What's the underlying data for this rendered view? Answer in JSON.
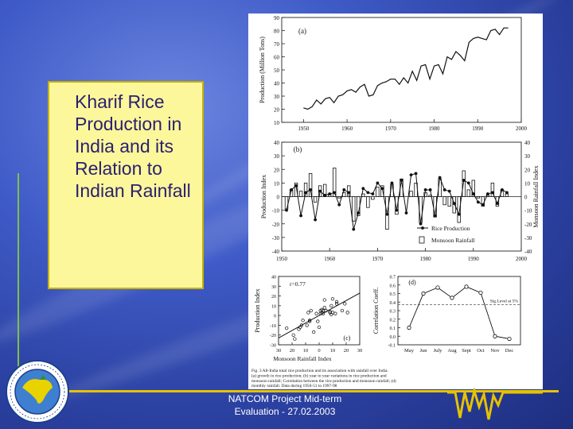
{
  "slide": {
    "title": "Kharif Rice Production in India and its Relation to Indian Rainfall",
    "footer_line1": "NATCOM Project Mid-term",
    "footer_line2": "Evaluation - 27.02.2003",
    "colors": {
      "accent": "#e6c200",
      "box_fill": "#fcf79a",
      "title_text": "#2b2070"
    }
  },
  "figure": {
    "caption": "Fig. 3 All-India total rice production and its association with rainfall over India. (a) growth in rice production; (b) year to year variations in rice production and monsoon rainfall; Correlation between the rice production and monsoon rainfall; (d) monthly rainfall. Data during 1950-51 to 1997-98"
  },
  "chart_data": [
    {
      "panel": "(a)",
      "type": "line",
      "ylabel": "Production (Million Tons)",
      "xlim": [
        1945,
        2000
      ],
      "ylim": [
        10,
        90
      ],
      "xticks": [
        1950,
        1960,
        1970,
        1980,
        1990,
        2000
      ],
      "yticks": [
        10,
        20,
        30,
        40,
        50,
        60,
        70,
        80,
        90
      ],
      "x": [
        1950,
        1951,
        1952,
        1953,
        1954,
        1955,
        1956,
        1957,
        1958,
        1959,
        1960,
        1961,
        1962,
        1963,
        1964,
        1965,
        1966,
        1967,
        1968,
        1969,
        1970,
        1971,
        1972,
        1973,
        1974,
        1975,
        1976,
        1977,
        1978,
        1979,
        1980,
        1981,
        1982,
        1983,
        1984,
        1985,
        1986,
        1987,
        1988,
        1989,
        1990,
        1991,
        1992,
        1993,
        1994,
        1995,
        1996,
        1997
      ],
      "y": [
        21,
        20,
        22,
        27,
        24,
        28,
        29,
        25,
        30,
        31,
        34,
        35,
        33,
        37,
        39,
        30,
        31,
        38,
        40,
        41,
        43,
        43,
        39,
        44,
        40,
        49,
        42,
        53,
        54,
        43,
        53,
        54,
        47,
        60,
        58,
        64,
        61,
        57,
        71,
        74,
        75,
        74,
        73,
        80,
        81,
        77,
        82,
        82
      ]
    },
    {
      "panel": "(b)",
      "type": "bar",
      "ylabel": "Production Index",
      "y2label": "Monsoon Rainfall Index",
      "xlim": [
        1950,
        2000
      ],
      "ylim": [
        -40,
        40
      ],
      "xticks": [
        1950,
        1960,
        1970,
        1980,
        1990,
        2000
      ],
      "yticks": [
        40,
        30,
        20,
        10,
        0,
        -10,
        -20,
        -30,
        -40
      ],
      "legend": [
        "Rice Production",
        "Monsoon Rainfall"
      ],
      "legend_position": "bottom-right",
      "x": [
        1951,
        1952,
        1953,
        1954,
        1955,
        1956,
        1957,
        1958,
        1959,
        1960,
        1961,
        1962,
        1963,
        1964,
        1965,
        1966,
        1967,
        1968,
        1969,
        1970,
        1971,
        1972,
        1973,
        1974,
        1975,
        1976,
        1977,
        1978,
        1979,
        1980,
        1981,
        1982,
        1983,
        1984,
        1985,
        1986,
        1987,
        1988,
        1989,
        1990,
        1991,
        1992,
        1993,
        1994,
        1995,
        1996,
        1997
      ],
      "series": [
        {
          "name": "Rice Production",
          "kind": "line",
          "values": [
            -10,
            5,
            8,
            -14,
            3,
            5,
            -17,
            4,
            1,
            2,
            3,
            -6,
            5,
            3,
            -24,
            -12,
            6,
            3,
            2,
            10,
            6,
            -13,
            10,
            -10,
            12,
            -12,
            16,
            17,
            -20,
            5,
            5,
            -14,
            14,
            5,
            4,
            -5,
            -13,
            12,
            10,
            2,
            -4,
            -6,
            2,
            3,
            -5,
            5,
            3
          ]
        },
        {
          "name": "Monsoon Rainfall",
          "kind": "bar",
          "values": [
            -9,
            5,
            10,
            4,
            10,
            17,
            -4,
            8,
            9,
            2,
            21,
            -1,
            3,
            8,
            -18,
            -14,
            2,
            -8,
            -2,
            7,
            8,
            -24,
            9,
            -13,
            13,
            0,
            4,
            10,
            -19,
            3,
            1,
            -15,
            13,
            -6,
            -7,
            -12,
            -19,
            19,
            5,
            12,
            -1,
            -7,
            1,
            10,
            -7,
            5,
            2
          ]
        }
      ]
    },
    {
      "panel": "(c)",
      "type": "scatter",
      "xlabel": "Monsoon Rainfall Index",
      "ylabel": "Production Index",
      "xlim": [
        -30,
        30
      ],
      "ylim": [
        -30,
        40
      ],
      "xticks": [
        -30,
        -20,
        -10,
        0,
        10,
        20,
        30
      ],
      "xticklabels": [
        "30",
        "20",
        "10",
        "0",
        "10",
        "20",
        "30"
      ],
      "yticks": [
        -30,
        -20,
        -10,
        0,
        10,
        20,
        30,
        40
      ],
      "annotation": "r=0.77",
      "points": [
        [
          -24,
          -13
        ],
        [
          -19,
          -20
        ],
        [
          -18,
          -24
        ],
        [
          -15,
          -14
        ],
        [
          -14,
          -12
        ],
        [
          -13,
          -10
        ],
        [
          -12,
          -5
        ],
        [
          -9,
          -10
        ],
        [
          -8,
          3
        ],
        [
          -7,
          -6
        ],
        [
          -7,
          -5
        ],
        [
          -6,
          5
        ],
        [
          -4,
          -17
        ],
        [
          -2,
          2
        ],
        [
          -1,
          -6
        ],
        [
          0,
          -12
        ],
        [
          1,
          5
        ],
        [
          1,
          2
        ],
        [
          2,
          6
        ],
        [
          2,
          3
        ],
        [
          3,
          5
        ],
        [
          3,
          2
        ],
        [
          4,
          8
        ],
        [
          4,
          16
        ],
        [
          5,
          5
        ],
        [
          5,
          5
        ],
        [
          8,
          4
        ],
        [
          8,
          3
        ],
        [
          9,
          1
        ],
        [
          9,
          10
        ],
        [
          10,
          17
        ],
        [
          10,
          3
        ],
        [
          12,
          2
        ],
        [
          13,
          12
        ],
        [
          13,
          14
        ],
        [
          17,
          5
        ],
        [
          19,
          12
        ],
        [
          21,
          3
        ]
      ],
      "fit_line": [
        [
          -30,
          -23
        ],
        [
          30,
          23
        ]
      ]
    },
    {
      "panel": "(d)",
      "type": "line",
      "ylabel": "Correlation Coeff.",
      "ylim": [
        -0.1,
        0.7
      ],
      "yticks": [
        0.7,
        0.6,
        0.5,
        0.4,
        0.3,
        0.2,
        0.1,
        0.0,
        -0.1
      ],
      "categories": [
        "May",
        "Jun",
        "July",
        "Aug",
        "Sept",
        "Oct",
        "Nov",
        "Dec"
      ],
      "values": [
        0.1,
        0.5,
        0.57,
        0.45,
        0.58,
        0.51,
        0.0,
        -0.03
      ],
      "significance_level": 0.37,
      "significance_label": "Sig.Level at 5%"
    }
  ]
}
